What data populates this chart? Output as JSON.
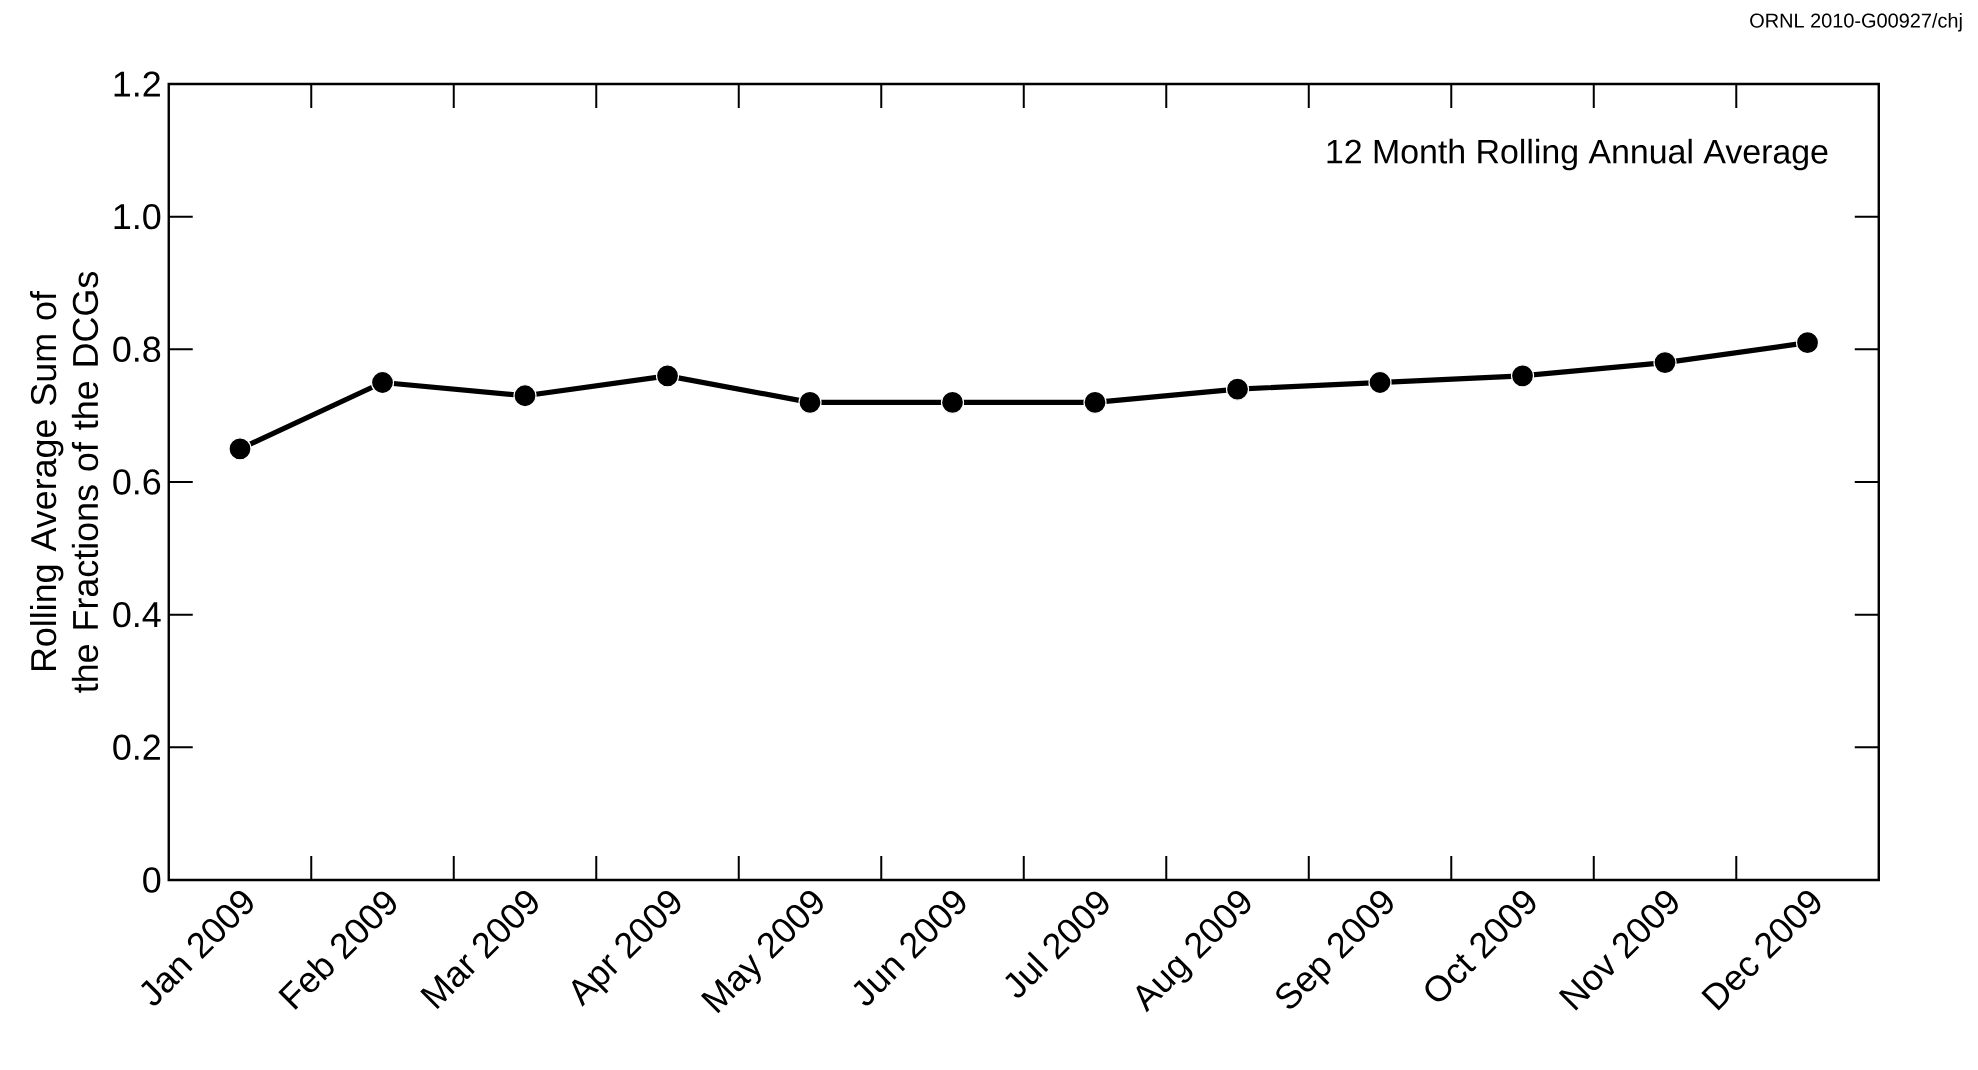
{
  "chart_data": {
    "type": "line",
    "ylabel": "Rolling Average Sum of the Fractions of the DCGs",
    "annotations": [
      "ORNL 2010-G00927/chj",
      "12 Month Rolling Annual Average"
    ],
    "categories": [
      "Jan 2009",
      "Feb 2009",
      "Mar 2009",
      "Apr 2009",
      "May 2009",
      "Jun 2009",
      "Jul 2009",
      "Aug 2009",
      "Sep 2009",
      "Oct 2009",
      "Nov 2009",
      "Dec 2009"
    ],
    "series": [
      {
        "color": "#000000",
        "values": [
          0.65,
          0.75,
          0.73,
          0.76,
          0.72,
          0.72,
          0.72,
          0.74,
          0.75,
          0.76,
          0.78,
          0.81
        ]
      }
    ],
    "ylim": [
      0,
      1.2
    ],
    "yticks": [
      0,
      0.2,
      0.4,
      0.6,
      0.8,
      {
        "value": 1,
        "label": "1.0"
      },
      1.2
    ],
    "marker": "circle",
    "line_style": "solid",
    "grid": false
  }
}
